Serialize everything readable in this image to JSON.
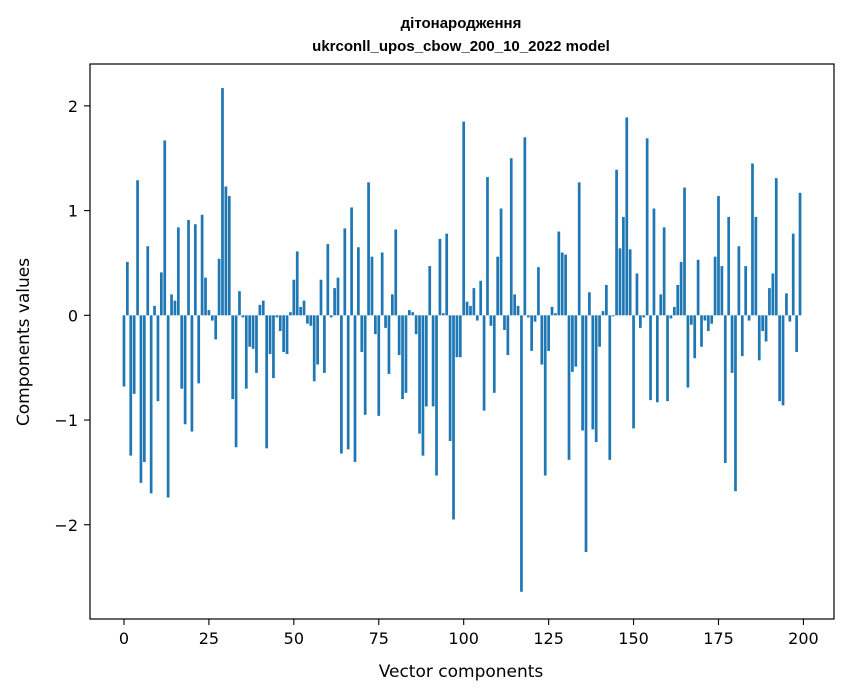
{
  "chart_data": {
    "type": "bar",
    "title": "дітонародження",
    "subtitle": "ukrconll_upos_cbow_200_10_2022 model",
    "xlabel": "Vector components",
    "ylabel": "Components values",
    "xlim": [
      -10,
      209
    ],
    "ylim": [
      -2.9,
      2.4
    ],
    "xticks": [
      0,
      25,
      50,
      75,
      100,
      125,
      150,
      175,
      200
    ],
    "xtick_labels": [
      "0",
      "25",
      "50",
      "75",
      "100",
      "125",
      "150",
      "175",
      "200"
    ],
    "yticks": [
      -2,
      -1,
      0,
      1,
      2
    ],
    "ytick_labels": [
      "−2",
      "−1",
      "0",
      "1",
      "2"
    ],
    "grid": false,
    "bar_color": "#1f77b4",
    "x": [
      0,
      1,
      2,
      3,
      4,
      5,
      6,
      7,
      8,
      9,
      10,
      11,
      12,
      13,
      14,
      15,
      16,
      17,
      18,
      19,
      20,
      21,
      22,
      23,
      24,
      25,
      26,
      27,
      28,
      29,
      30,
      31,
      32,
      33,
      34,
      35,
      36,
      37,
      38,
      39,
      40,
      41,
      42,
      43,
      44,
      45,
      46,
      47,
      48,
      49,
      50,
      51,
      52,
      53,
      54,
      55,
      56,
      57,
      58,
      59,
      60,
      61,
      62,
      63,
      64,
      65,
      66,
      67,
      68,
      69,
      70,
      71,
      72,
      73,
      74,
      75,
      76,
      77,
      78,
      79,
      80,
      81,
      82,
      83,
      84,
      85,
      86,
      87,
      88,
      89,
      90,
      91,
      92,
      93,
      94,
      95,
      96,
      97,
      98,
      99,
      100,
      101,
      102,
      103,
      104,
      105,
      106,
      107,
      108,
      109,
      110,
      111,
      112,
      113,
      114,
      115,
      116,
      117,
      118,
      119,
      120,
      121,
      122,
      123,
      124,
      125,
      126,
      127,
      128,
      129,
      130,
      131,
      132,
      133,
      134,
      135,
      136,
      137,
      138,
      139,
      140,
      141,
      142,
      143,
      144,
      145,
      146,
      147,
      148,
      149,
      150,
      151,
      152,
      153,
      154,
      155,
      156,
      157,
      158,
      159,
      160,
      161,
      162,
      163,
      164,
      165,
      166,
      167,
      168,
      169,
      170,
      171,
      172,
      173,
      174,
      175,
      176,
      177,
      178,
      179,
      180,
      181,
      182,
      183,
      184,
      185,
      186,
      187,
      188,
      189,
      190,
      191,
      192,
      193,
      194,
      195,
      196,
      197,
      198,
      199
    ],
    "values": [
      -0.68,
      0.51,
      -1.34,
      -0.75,
      1.29,
      -1.6,
      -1.4,
      0.66,
      -1.7,
      0.09,
      -0.82,
      0.41,
      1.67,
      -1.74,
      0.2,
      0.14,
      0.84,
      -0.7,
      -1.04,
      0.91,
      -1.11,
      0.87,
      -0.65,
      0.96,
      0.36,
      0.05,
      -0.05,
      -0.23,
      0.54,
      2.17,
      1.23,
      1.14,
      -0.8,
      -1.26,
      0.23,
      -0.02,
      -0.7,
      -0.3,
      -0.32,
      -0.55,
      0.1,
      0.14,
      -1.27,
      -0.37,
      -0.6,
      -0.02,
      -0.15,
      -0.35,
      -0.37,
      0.03,
      0.34,
      0.61,
      0.08,
      0.14,
      -0.08,
      -0.1,
      -0.63,
      -0.47,
      0.34,
      -0.55,
      0.68,
      -0.02,
      0.26,
      0.36,
      -1.32,
      0.83,
      -1.28,
      1.03,
      -1.4,
      0.65,
      -0.35,
      -0.95,
      1.27,
      0.56,
      -0.18,
      -0.96,
      0.6,
      -0.12,
      -0.56,
      0.2,
      0.82,
      -0.38,
      -0.8,
      -0.74,
      0.05,
      0.03,
      -0.18,
      -1.13,
      -1.34,
      -0.87,
      0.47,
      -0.87,
      -1.53,
      0.73,
      0.02,
      0.78,
      -1.2,
      -1.95,
      -0.4,
      -0.4,
      1.85,
      0.13,
      0.09,
      0.26,
      -0.05,
      0.33,
      -0.91,
      1.32,
      -0.1,
      -0.74,
      0.56,
      1.02,
      -0.14,
      -0.38,
      1.5,
      0.2,
      0.09,
      -2.64,
      1.7,
      -0.02,
      -0.34,
      -0.06,
      0.46,
      -0.47,
      -1.53,
      -0.34,
      0.08,
      0.02,
      0.8,
      0.6,
      0.58,
      -1.38,
      -0.54,
      -0.49,
      1.27,
      -1.1,
      -2.26,
      0.22,
      -1.09,
      -1.21,
      -0.3,
      0.04,
      0.29,
      -1.38,
      -0.01,
      1.39,
      0.64,
      0.94,
      1.89,
      0.63,
      -1.08,
      0.4,
      -0.12,
      -0.02,
      1.69,
      -0.81,
      1.02,
      -0.83,
      0.2,
      0.84,
      -0.82,
      -0.03,
      0.08,
      0.29,
      0.51,
      1.22,
      -0.69,
      -0.09,
      -0.41,
      0.53,
      -0.3,
      -0.05,
      -0.15,
      -0.08,
      0.56,
      1.14,
      0.47,
      -1.41,
      0.94,
      -0.55,
      -1.68,
      0.66,
      -0.39,
      0.47,
      -0.05,
      1.45,
      0.94,
      -0.43,
      -0.15,
      -0.25,
      0.26,
      0.4,
      1.31,
      -0.82,
      -0.86,
      0.21,
      -0.06,
      0.78,
      -0.35,
      1.17
    ]
  }
}
